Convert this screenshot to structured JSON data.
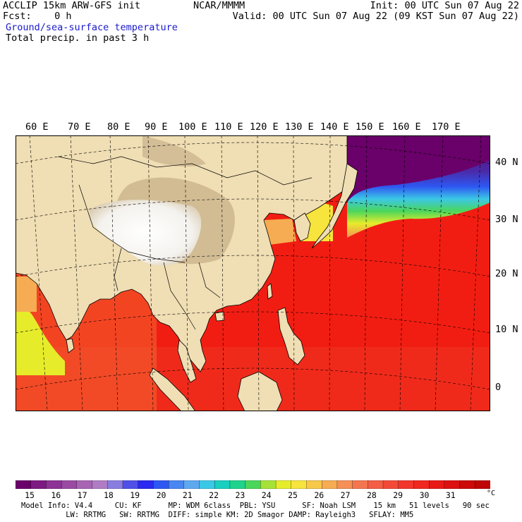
{
  "header": {
    "model_line": "ACCLIP 15km ARW-GFS init",
    "fcst_line": "Fcst:    0 h",
    "source": "NCAR/MMMM",
    "init": "Init: 00 UTC Sun 07 Aug 22",
    "valid": "Valid: 00 UTC Sun 07 Aug 22 (09 KST Sun 07 Aug 22)",
    "field1": "Ground/sea-surface temperature",
    "field2": "Total precip. in past 3 h"
  },
  "map": {
    "lon_labels": [
      "60 E",
      "70 E",
      "80 E",
      "90 E",
      "100 E",
      "110 E",
      "120 E",
      "130 E",
      "140 E",
      "150 E",
      "160 E",
      "170 E"
    ],
    "lat_labels": [
      "40 N",
      "30 N",
      "20 N",
      "10 N",
      "0"
    ],
    "colors": {
      "land": "#f0deb4",
      "ocean_warm": "#f21d12",
      "border": "#000000"
    }
  },
  "colorbar": {
    "unit": "°C",
    "ticks": [
      "15",
      "16",
      "17",
      "18",
      "19",
      "20",
      "21",
      "22",
      "23",
      "24",
      "25",
      "26",
      "27",
      "28",
      "29",
      "30",
      "31"
    ],
    "colors": [
      "#6a006a",
      "#7c1a82",
      "#8d3395",
      "#9a4aa3",
      "#a865b3",
      "#b07cc4",
      "#8a7de0",
      "#5050e8",
      "#2a2af0",
      "#2e57f2",
      "#4a86f2",
      "#5ea8f0",
      "#3bc7e6",
      "#19cfc0",
      "#1fd38c",
      "#4bd65c",
      "#a6e238",
      "#e6ec2a",
      "#f7e43c",
      "#f7c84a",
      "#f6ac52",
      "#f59056",
      "#f47650",
      "#f45e44",
      "#f34a38",
      "#f2372c",
      "#f02820",
      "#e81a16",
      "#dc1010",
      "#cc0a0a",
      "#be0606"
    ]
  },
  "footer": {
    "line1": "Model Info: V4.4     CU: KF      MP: WDM 6class  PBL: YSU      SF: Noah LSM    15 km   51 levels   90 sec",
    "line2": "          LW: RRTMG   SW: RRTMG  DIFF: simple KM: 2D Smagor DAMP: Rayleigh3   SFLAY: MM5"
  }
}
